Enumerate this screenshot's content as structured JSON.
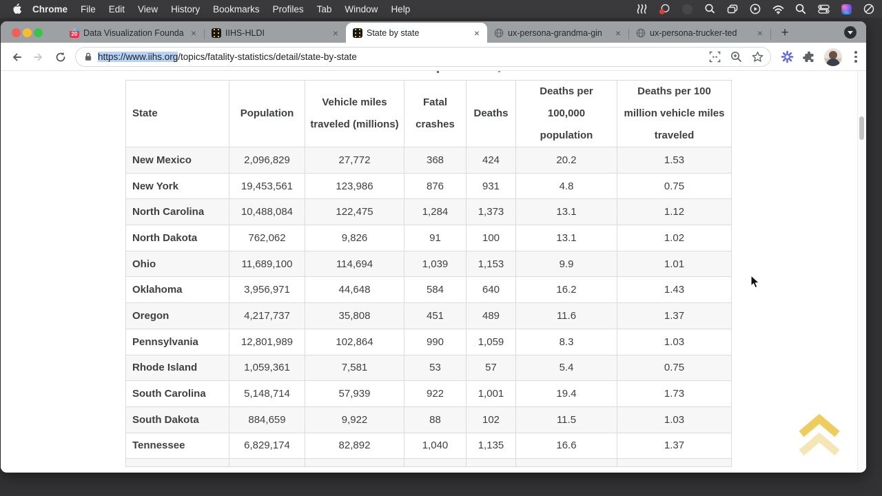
{
  "menu_bar": {
    "apple_icon": "apple-logo",
    "items": [
      "Chrome",
      "File",
      "Edit",
      "View",
      "History",
      "Bookmarks",
      "Profiles",
      "Tab",
      "Window",
      "Help"
    ],
    "status_icon_names": [
      "waves-icon",
      "meeting-app-red-dot-icon",
      "dimmed-app-icon",
      "loupe-icon",
      "windows-stack-icon",
      "play-circle-icon",
      "wifi-icon",
      "spotlight-search-icon",
      "control-center-icon",
      "colorful-app-icon",
      "focus-slash-icon"
    ]
  },
  "tab_strip": {
    "tabs": [
      {
        "title": "Data Visualization Founda",
        "favicon": "calendar-20",
        "badge": "20",
        "active": false
      },
      {
        "title": "IIHS-HLDI",
        "favicon": "iihs-road",
        "active": false
      },
      {
        "title": "State by state",
        "favicon": "iihs-road",
        "active": true
      },
      {
        "title": "ux-persona-grandma-gin",
        "favicon": "globe",
        "active": false
      },
      {
        "title": "ux-persona-trucker-ted",
        "favicon": "globe",
        "active": false
      }
    ],
    "close_glyph": "×",
    "new_tab_glyph": "+"
  },
  "address_bar": {
    "selected_text": "https://www.iihs.org",
    "rest_text": "/topics/fatality-statistics/detail/state-by-state",
    "left_icon": "lock-icon",
    "right_icon_names": [
      "screenshot-icon",
      "zoom-in-icon",
      "bookmark-star-icon"
    ]
  },
  "toolbar_right_icon_names": [
    "extension-starburst-icon",
    "extensions-puzzle-icon",
    "profile-avatar",
    "three-dot-menu-icon"
  ],
  "table": {
    "headers": [
      "State",
      "Population",
      "Vehicle miles traveled (millions)",
      "Fatal crashes",
      "Deaths",
      "Deaths per 100,000 population",
      "Deaths per 100 million vehicle miles traveled"
    ],
    "rows": [
      [
        "New Mexico",
        "2,096,829",
        "27,772",
        "368",
        "424",
        "20.2",
        "1.53"
      ],
      [
        "New York",
        "19,453,561",
        "123,986",
        "876",
        "931",
        "4.8",
        "0.75"
      ],
      [
        "North Carolina",
        "10,488,084",
        "122,475",
        "1,284",
        "1,373",
        "13.1",
        "1.12"
      ],
      [
        "North Dakota",
        "762,062",
        "9,826",
        "91",
        "100",
        "13.1",
        "1.02"
      ],
      [
        "Ohio",
        "11,689,100",
        "114,694",
        "1,039",
        "1,153",
        "9.9",
        "1.01"
      ],
      [
        "Oklahoma",
        "3,956,971",
        "44,648",
        "584",
        "640",
        "16.2",
        "1.43"
      ],
      [
        "Oregon",
        "4,217,737",
        "35,808",
        "451",
        "489",
        "11.6",
        "1.37"
      ],
      [
        "Pennsylvania",
        "12,801,989",
        "102,864",
        "990",
        "1,059",
        "8.3",
        "1.03"
      ],
      [
        "Rhode Island",
        "1,059,361",
        "7,581",
        "53",
        "57",
        "5.4",
        "0.75"
      ],
      [
        "South Carolina",
        "5,148,714",
        "57,939",
        "922",
        "1,001",
        "19.4",
        "1.73"
      ],
      [
        "South Dakota",
        "884,659",
        "9,922",
        "88",
        "102",
        "11.5",
        "1.03"
      ],
      [
        "Tennessee",
        "6,829,174",
        "82,892",
        "1,040",
        "1,135",
        "16.6",
        "1.37"
      ]
    ]
  },
  "page": {
    "back_to_top_icon": "chevrons-up-icon"
  },
  "colors": {
    "url_selection": "#b5d2f7",
    "iihs_yellow": "#f4c400",
    "alt_row": "#f7f7f7",
    "chevron_gold": "#eecd5e",
    "menubar_bg": "#3a3a3c",
    "tabstrip_bg": "#9ea1a4"
  }
}
